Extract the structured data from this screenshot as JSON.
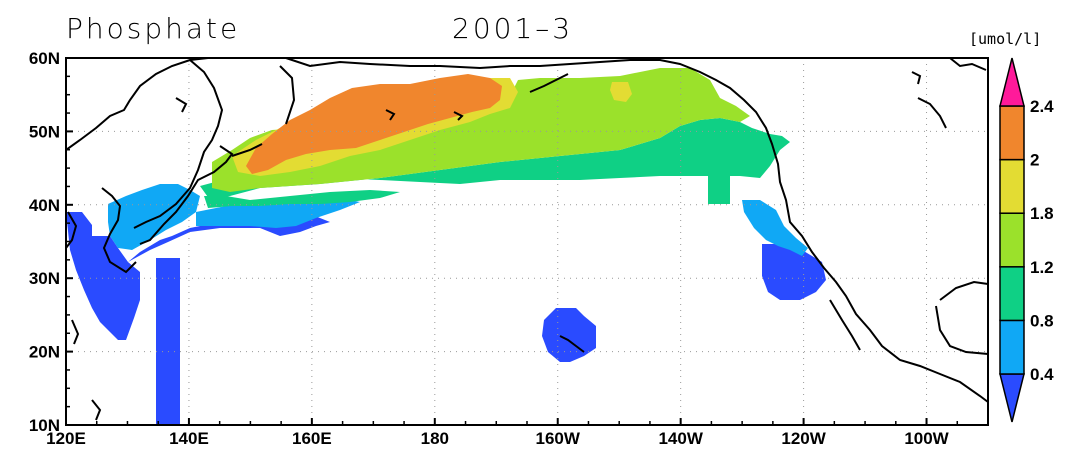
{
  "title": "Phosphate",
  "date": "2001–3",
  "units": "[umol/l]",
  "map": {
    "region": "North Pacific",
    "lon_range": [
      120,
      270
    ],
    "lat_range": [
      10,
      60
    ],
    "x_ticks": [
      {
        "lon": 120,
        "label": "120E"
      },
      {
        "lon": 140,
        "label": "140E"
      },
      {
        "lon": 160,
        "label": "160E"
      },
      {
        "lon": 180,
        "label": "180"
      },
      {
        "lon": 200,
        "label": "160W"
      },
      {
        "lon": 220,
        "label": "140W"
      },
      {
        "lon": 240,
        "label": "120W"
      },
      {
        "lon": 260,
        "label": "100W"
      }
    ],
    "y_ticks": [
      {
        "lat": 60,
        "label": "60N"
      },
      {
        "lat": 50,
        "label": "50N"
      },
      {
        "lat": 40,
        "label": "40N"
      },
      {
        "lat": 30,
        "label": "30N"
      },
      {
        "lat": 20,
        "label": "20N"
      },
      {
        "lat": 10,
        "label": "10N"
      }
    ],
    "grid": "dotted"
  },
  "colorbar": {
    "levels": [
      "0.4",
      "0.8",
      "1.2",
      "1.8",
      "2",
      "2.4"
    ],
    "colors": [
      "#2a4bff",
      "#10a8f5",
      "#0fd085",
      "#9be12b",
      "#e3dc33",
      "#f0862d",
      "#ff1a9a"
    ]
  }
}
